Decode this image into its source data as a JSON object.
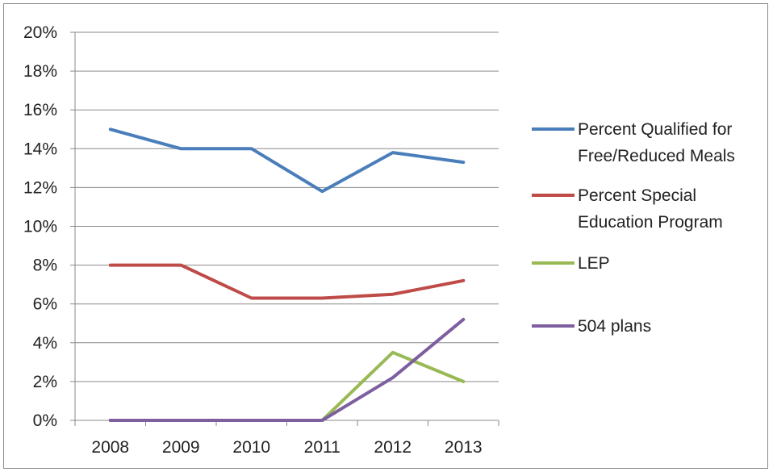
{
  "chart_data": {
    "type": "line",
    "categories": [
      "2008",
      "2009",
      "2010",
      "2011",
      "2012",
      "2013"
    ],
    "ylim": [
      0,
      20
    ],
    "yticks": [
      "0%",
      "2%",
      "4%",
      "6%",
      "8%",
      "10%",
      "12%",
      "14%",
      "16%",
      "18%",
      "20%"
    ],
    "ytick_values": [
      0,
      2,
      4,
      6,
      8,
      10,
      12,
      14,
      16,
      18,
      20
    ],
    "grid": true,
    "legend_position": "right",
    "series": [
      {
        "name": "Percent Qualified for Free/Reduced Meals",
        "legend_lines": [
          "Percent Qualified for",
          "Free/Reduced Meals"
        ],
        "color": "#4a7ebb",
        "values": [
          15.0,
          14.0,
          14.0,
          11.8,
          13.8,
          13.3
        ]
      },
      {
        "name": "Percent Special Education Program",
        "legend_lines": [
          "Percent Special",
          "Education Program"
        ],
        "color": "#be4b48",
        "values": [
          8.0,
          8.0,
          6.3,
          6.3,
          6.5,
          7.2
        ]
      },
      {
        "name": "LEP",
        "legend_lines": [
          "LEP"
        ],
        "color": "#98b954",
        "values": [
          0,
          0,
          0,
          0,
          3.5,
          2.0
        ]
      },
      {
        "name": "504 plans",
        "legend_lines": [
          "504 plans"
        ],
        "color": "#7d5fa0",
        "values": [
          0,
          0,
          0,
          0,
          2.2,
          5.2
        ]
      }
    ]
  }
}
